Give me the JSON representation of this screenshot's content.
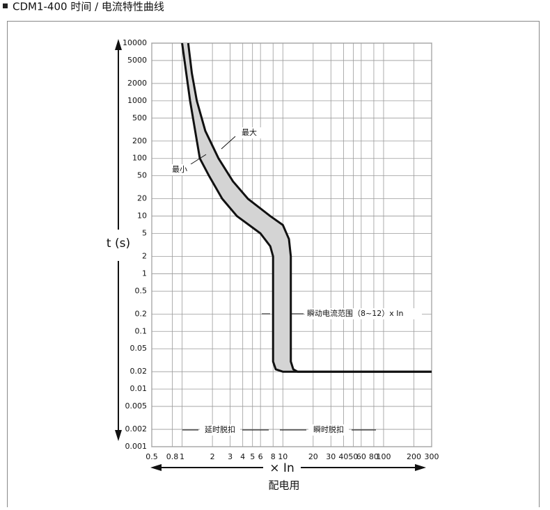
{
  "chart_data": {
    "type": "line",
    "title": "CDM1-400 时间 / 电流特性曲线",
    "x_label": "× In",
    "y_label": "t (s)",
    "subtitle": "配电用",
    "log_x": true,
    "log_y": true,
    "grid": true,
    "xlim": [
      0.5,
      300
    ],
    "xticks": [
      0.5,
      0.8,
      1,
      2,
      3,
      4,
      5,
      6,
      8,
      10,
      20,
      30,
      40,
      50,
      60,
      80,
      100,
      200,
      300
    ],
    "ylim": [
      0.001,
      10000
    ],
    "yticks": [
      10000,
      5000,
      2000,
      1000,
      500,
      200,
      100,
      50,
      20,
      10,
      5,
      2,
      1,
      0.5,
      0.2,
      0.1,
      0.05,
      0.02,
      0.01,
      0.005,
      0.002,
      0.001
    ],
    "band_color": "#d4d4d4",
    "series": [
      {
        "name": "最大",
        "color": "#111111",
        "x": [
          1.15,
          1.25,
          1.4,
          1.7,
          2.3,
          3.2,
          4.5,
          7.5,
          10,
          11.5,
          12,
          12,
          12.7,
          14,
          300
        ],
        "values": [
          10000,
          3000,
          1000,
          300,
          100,
          40,
          20,
          10,
          7,
          4,
          2,
          0.03,
          0.022,
          0.02,
          0.02
        ]
      },
      {
        "name": "最小",
        "color": "#111111",
        "x": [
          1.0,
          1.1,
          1.2,
          1.5,
          1.85,
          2.5,
          3.5,
          6,
          7.5,
          8,
          8,
          8.5,
          10,
          300
        ],
        "values": [
          10000,
          3000,
          1000,
          100,
          50,
          20,
          10,
          5,
          3,
          2,
          0.03,
          0.022,
          0.02,
          0.02
        ]
      }
    ],
    "annotations": [
      "瞬动电流范围（8~12）x In",
      "延时脱扣",
      "瞬时脱扣"
    ]
  }
}
